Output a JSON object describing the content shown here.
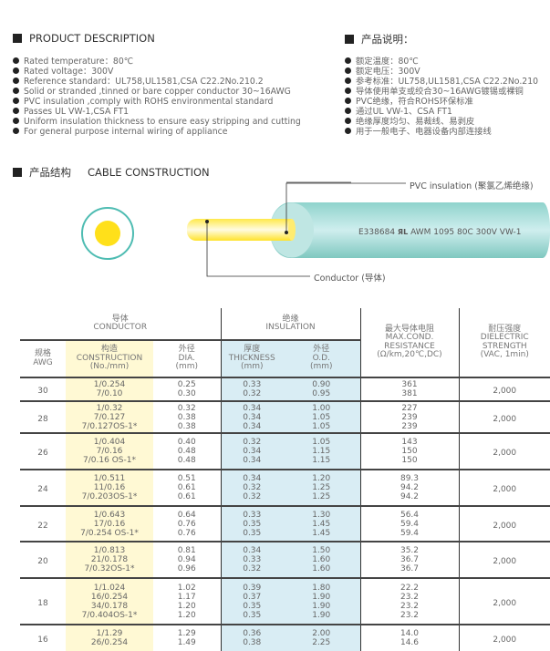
{
  "description": {
    "title_en": "PRODUCT DESCRIPTION",
    "title_cn": "产品说明：",
    "items_en": [
      "Rated temperature：80℃",
      "Rated voltage：300V",
      "Reference standard：UL758,UL1581,CSA C22.2No.210.2",
      "Solid or stranded ,tinned or bare copper conductor 30~16AWG",
      "PVC insulation ,comply with ROHS environmental standard",
      "Passes UL VW-1,CSA FT1",
      "Uniform insulation thickness to ensure easy stripping and cutting",
      "For general purpose internal wiring of appliance"
    ],
    "items_cn": [
      "额定温度：80℃",
      "额定电压：300V",
      "参考标准：UL758,UL1581,CSA C22.2No.210",
      "导体使用单支或绞合30~16AWG镀锡或裸铜",
      "PVC绝缘，符合ROHS环保标准",
      "通过UL VW-1、CSA FT1",
      "绝缘厚度均匀、易裁线、易剥皮",
      "用于一般电子、电器设备内部连接线"
    ]
  },
  "construction": {
    "title_cn": "产品结构",
    "title_en": "CABLE CONSTRUCTION",
    "insulation_label": "PVC insulation (聚氯乙烯绝缘)",
    "conductor_label": "Conductor (导体)",
    "print_code": "E338684",
    "print_mark": "ЯL",
    "print_text": "AWM 1095 80C 300V VW-1",
    "colors": {
      "insulation": "#a8ddd8",
      "conductor": "#ffe21a"
    }
  },
  "table": {
    "headers": {
      "conductor_cn": "导体",
      "conductor_en": "CONDUCTOR",
      "insulation_cn": "绝缘",
      "insulation_en": "INSULATION",
      "awg_cn": "规格",
      "awg_en": "AWG",
      "constr_cn": "构造",
      "constr_en": "CONSTRUCTION",
      "constr_unit": "(No./mm)",
      "dia_cn": "外径",
      "dia_en": "DIA.",
      "dia_unit": "(mm)",
      "thick_cn": "厚度",
      "thick_en": "THICKNESS",
      "thick_unit": "(mm)",
      "od_cn": "外径",
      "od_en": "O.D.",
      "od_unit": "(mm)",
      "res_cn": "最大导体电阻",
      "res_en1": "MAX.COND.",
      "res_en2": "RESISTANCE",
      "res_unit": "(Ω/km,20℃,DC)",
      "diel_cn": "耐压强度",
      "diel_en1": "DIELECTRIC",
      "diel_en2": "STRENGTH",
      "diel_unit": "(VAC, 1min)"
    },
    "rows": [
      {
        "awg": "30",
        "construction": [
          "1/0.254",
          "7/0.10"
        ],
        "dia": [
          "0.25",
          "0.30"
        ],
        "thickness": [
          "0.33",
          "0.32"
        ],
        "od": [
          "0.90",
          "0.95"
        ],
        "resistance": [
          "361",
          "381"
        ],
        "dielectric": "2,000"
      },
      {
        "awg": "28",
        "construction": [
          "1/0.32",
          "7/0.127",
          "7/0.127OS-1*"
        ],
        "dia": [
          "0.32",
          "0.38",
          "0.38"
        ],
        "thickness": [
          "0.34",
          "0.34",
          "0.34"
        ],
        "od": [
          "1.00",
          "1.05",
          "1.05"
        ],
        "resistance": [
          "227",
          "239",
          "239"
        ],
        "dielectric": "2,000"
      },
      {
        "awg": "26",
        "construction": [
          "1/0.404",
          "7/0.16",
          "7/0.16 OS-1*"
        ],
        "dia": [
          "0.40",
          "0.48",
          "0.48"
        ],
        "thickness": [
          "0.32",
          "0.34",
          "0.34"
        ],
        "od": [
          "1.05",
          "1.15",
          "1.15"
        ],
        "resistance": [
          "143",
          "150",
          "150"
        ],
        "dielectric": "2,000"
      },
      {
        "awg": "24",
        "construction": [
          "1/0.511",
          "11/0.16",
          "7/0.203OS-1*"
        ],
        "dia": [
          "0.51",
          "0.61",
          "0.61"
        ],
        "thickness": [
          "0.34",
          "0.32",
          "0.32"
        ],
        "od": [
          "1.20",
          "1.25",
          "1.25"
        ],
        "resistance": [
          "89.3",
          "94.2",
          "94.2"
        ],
        "dielectric": "2,000"
      },
      {
        "awg": "22",
        "construction": [
          "1/0.643",
          "17/0.16",
          "7/0.254 OS-1*"
        ],
        "dia": [
          "0.64",
          "0.76",
          "0.76"
        ],
        "thickness": [
          "0.33",
          "0.35",
          "0.35"
        ],
        "od": [
          "1.30",
          "1.45",
          "1.45"
        ],
        "resistance": [
          "56.4",
          "59.4",
          "59.4"
        ],
        "dielectric": "2,000"
      },
      {
        "awg": "20",
        "construction": [
          "1/0.813",
          "21/0.178",
          "7/0.32OS-1*"
        ],
        "dia": [
          "0.81",
          "0.94",
          "0.96"
        ],
        "thickness": [
          "0.34",
          "0.33",
          "0.32"
        ],
        "od": [
          "1.50",
          "1.60",
          "1.60"
        ],
        "resistance": [
          "35.2",
          "36.7",
          "36.7"
        ],
        "dielectric": "2,000"
      },
      {
        "awg": "18",
        "construction": [
          "1/1.024",
          "16/0.254",
          "34/0.178",
          "7/0.404OS-1*"
        ],
        "dia": [
          "1.02",
          "1.17",
          "1.20",
          "1.20"
        ],
        "thickness": [
          "0.39",
          "0.37",
          "0.35",
          "0.35"
        ],
        "od": [
          "1.80",
          "1.90",
          "1.90",
          "1.90"
        ],
        "resistance": [
          "22.2",
          "23.2",
          "23.2",
          "23.2"
        ],
        "dielectric": "2,000"
      },
      {
        "awg": "16",
        "construction": [
          "1/1.29",
          "26/0.254"
        ],
        "dia": [
          "1.29",
          "1.49"
        ],
        "thickness": [
          "0.36",
          "0.38"
        ],
        "od": [
          "2.00",
          "2.25"
        ],
        "resistance": [
          "14.0",
          "14.6"
        ],
        "dielectric": "2,000"
      }
    ]
  }
}
